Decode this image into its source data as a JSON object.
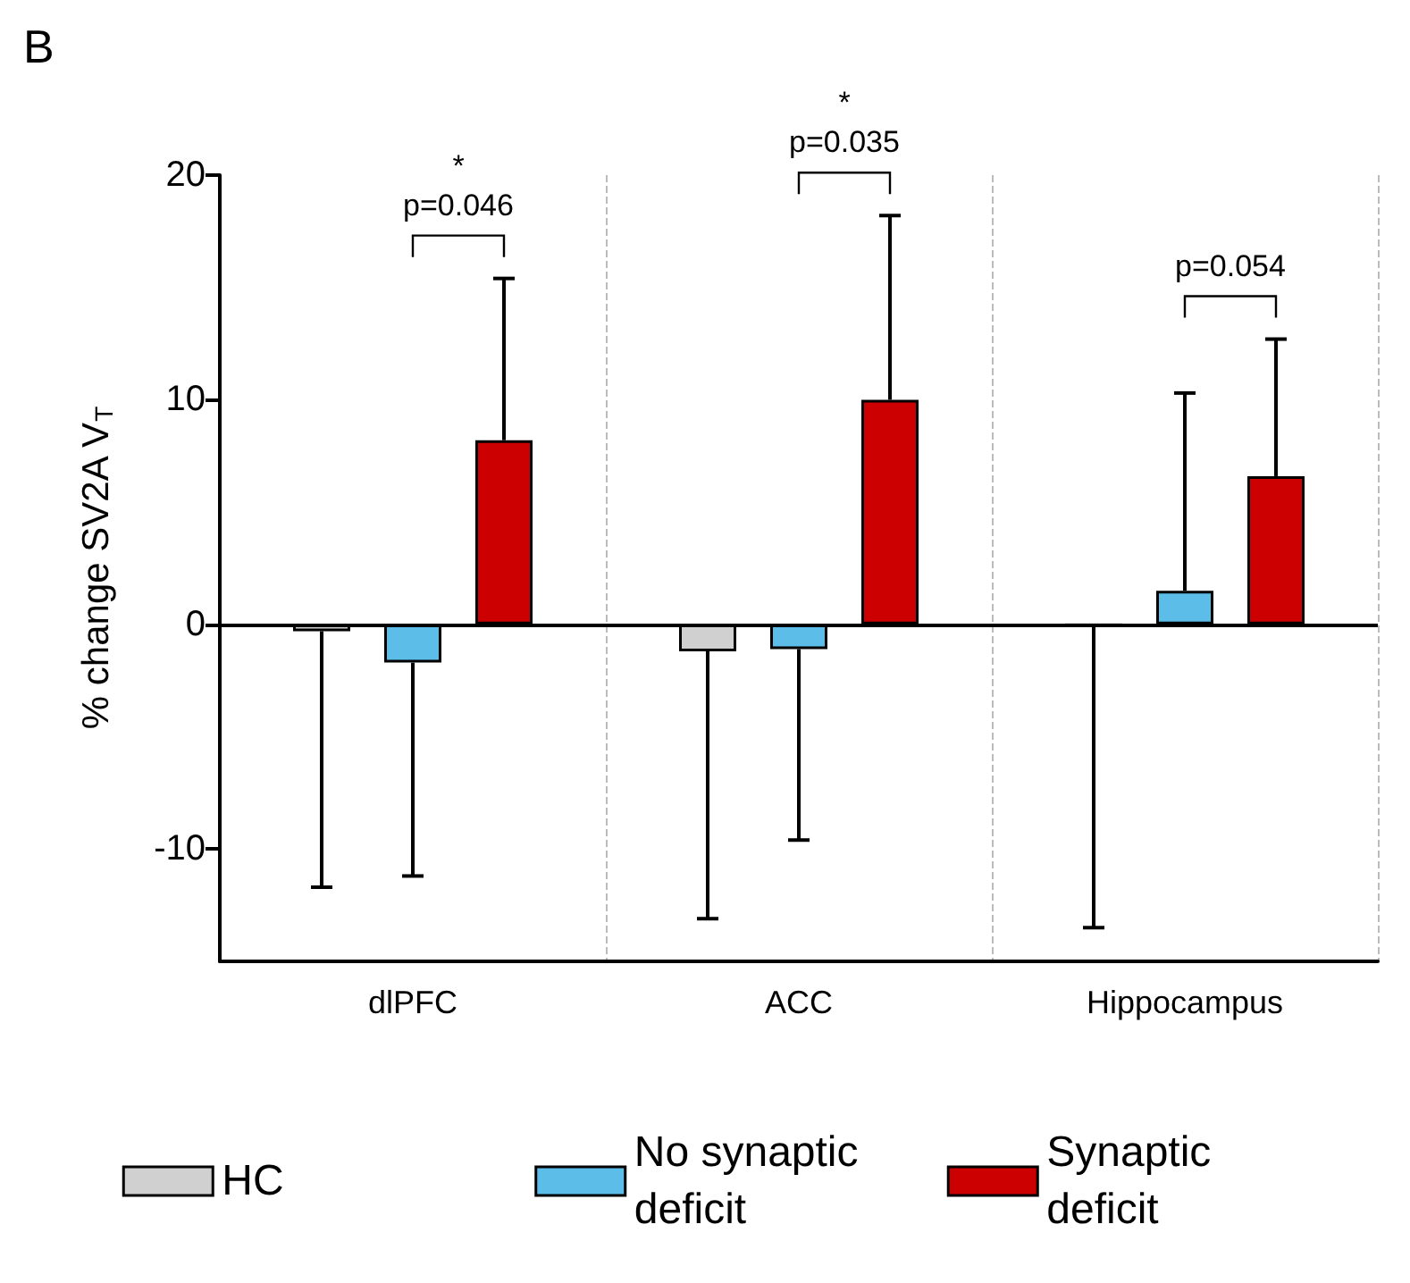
{
  "chart_data": {
    "type": "bar",
    "title": "B",
    "ylabel": "% change SV2A V$_{T}$",
    "categories": [
      "dlPFC",
      "ACC",
      "Hippocampus"
    ],
    "series": [
      {
        "name": "HC",
        "color": "#d0d0d0",
        "values": [
          -0.3,
          -1.2,
          0
        ],
        "errors": [
          [
            -11.7,
            -0.3
          ],
          [
            -13.1,
            -1.2
          ],
          [
            -13.5,
            0
          ]
        ]
      },
      {
        "name": "No synaptic deficit",
        "color": "#5bbde8",
        "values": [
          -1.7,
          -1.1,
          1.5
        ],
        "errors": [
          [
            -11.2,
            -1.7
          ],
          [
            -9.6,
            -1.1
          ],
          [
            1.5,
            10.3
          ]
        ]
      },
      {
        "name": "Synaptic deficit",
        "color": "#cc0000",
        "values": [
          8.2,
          10.0,
          6.6
        ],
        "errors": [
          [
            8.2,
            15.4
          ],
          [
            10.0,
            18.2
          ],
          [
            6.6,
            12.7
          ]
        ]
      }
    ],
    "annotations": [
      "*\np=0.046",
      "*\np=0.035",
      "p=0.054"
    ],
    "ref_lines": [
      {
        "axis": "y",
        "value": 0
      }
    ],
    "ylim": [
      -15,
      20
    ],
    "yticks": [
      -10,
      0,
      10,
      20
    ],
    "grid": "x",
    "legend": "bottom"
  }
}
